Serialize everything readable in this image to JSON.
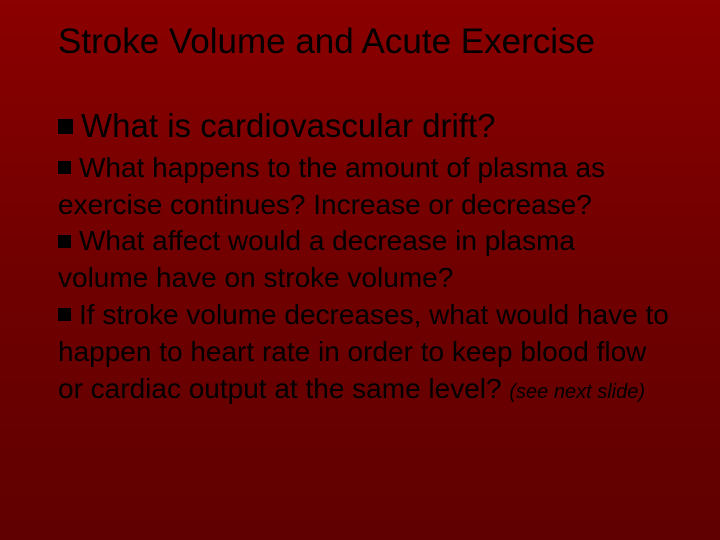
{
  "slide": {
    "background_gradient": [
      "#8b0000",
      "#700000",
      "#600000"
    ],
    "text_color": "#000000",
    "title": {
      "text": "Stroke Volume and Acute Exercise",
      "fontsize": 35,
      "font_weight": 400
    },
    "bullets": [
      {
        "level": 0,
        "fontsize": 33,
        "marker_size": 15,
        "text": "What is cardiovascular drift?"
      },
      {
        "level": 0,
        "fontsize": 28,
        "marker_size": 13,
        "text": "What happens to the amount of plasma as exercise continues? Increase or decrease?"
      },
      {
        "level": 0,
        "fontsize": 28,
        "marker_size": 13,
        "text": "What affect would a decrease in plasma volume have on stroke volume?"
      },
      {
        "level": 0,
        "fontsize": 28,
        "marker_size": 13,
        "text": "If stroke volume decreases, what would have to happen to heart rate in order to keep blood flow or cardiac output at the same level?",
        "trailing_note": "(see next slide)",
        "trailing_note_fontsize": 20,
        "trailing_note_style": "italic"
      }
    ]
  }
}
